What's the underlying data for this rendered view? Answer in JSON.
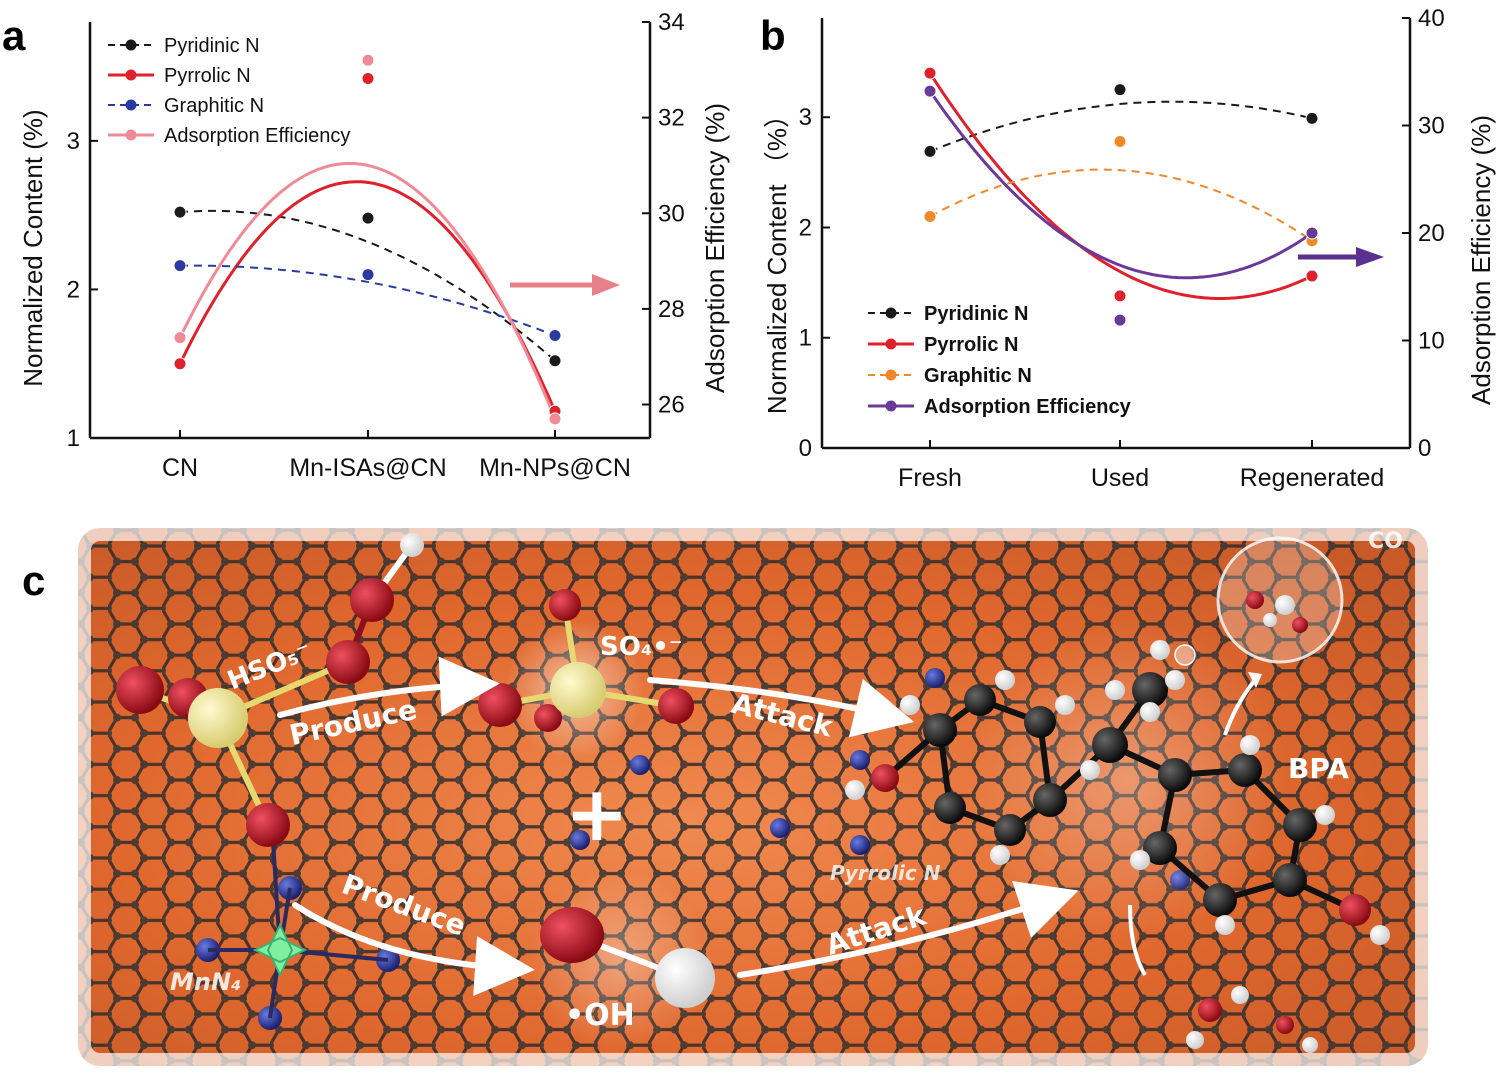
{
  "figure": {
    "panel_a_letter": "a",
    "panel_b_letter": "b",
    "panel_c_letter": "c"
  },
  "chart_data": [
    {
      "panel": "a",
      "type": "line",
      "categories": [
        "CN",
        "Mn-ISAs@CN",
        "Mn-NPs@CN"
      ],
      "ylabel": "Normalized Content (%)",
      "y2label": "Adsorption Efficiency (%)",
      "ylim": [
        1,
        3.8
      ],
      "y2lim": [
        25.3,
        34
      ],
      "yticks": [
        "1",
        "2",
        "3"
      ],
      "y2ticks": [
        "26",
        "28",
        "30",
        "32",
        "34"
      ],
      "legend_position": "top-left",
      "series": [
        {
          "name": "Pyridinic N",
          "axis": "left",
          "style": "dashed",
          "color": "#1a1a1a",
          "values": [
            2.52,
            2.48,
            1.52
          ],
          "fit": [
            2.52,
            2.32,
            1.52
          ]
        },
        {
          "name": "Pyrrolic N",
          "axis": "left",
          "style": "solid",
          "color": "#e0202a",
          "values": [
            1.5,
            3.42,
            1.18
          ],
          "fit": [
            1.5,
            2.72,
            1.18
          ]
        },
        {
          "name": "Graphitic N",
          "axis": "left",
          "style": "dashed",
          "color": "#2a3aa0",
          "values": [
            2.16,
            2.1,
            1.69
          ],
          "fit": [
            2.16,
            2.05,
            1.69
          ]
        },
        {
          "name": "Adsorption Efficiency",
          "axis": "right",
          "style": "solid",
          "color": "#f08a96",
          "values": [
            27.4,
            33.2,
            25.7
          ],
          "fit": [
            27.4,
            31.0,
            25.7
          ]
        }
      ],
      "annotation": "arrow pointing to right axis"
    },
    {
      "panel": "b",
      "type": "line",
      "categories": [
        "Fresh",
        "Used",
        "Regenerated"
      ],
      "ylabel": "Normalized Content （%）",
      "y2label": "Adsorption Efficiency (%)",
      "ylim": [
        0,
        3.9
      ],
      "y2lim": [
        0,
        40
      ],
      "yticks": [
        "0",
        "1",
        "2",
        "3"
      ],
      "y2ticks": [
        "0",
        "10",
        "20",
        "30",
        "40"
      ],
      "legend_position": "bottom-left",
      "series": [
        {
          "name": "Pyridinic N",
          "axis": "left",
          "style": "dashed",
          "color": "#1a1a1a",
          "values": [
            2.69,
            3.25,
            2.99
          ],
          "fit": [
            2.69,
            3.12,
            2.99
          ]
        },
        {
          "name": "Pyrrolic N",
          "axis": "left",
          "style": "solid",
          "color": "#e0202a",
          "values": [
            3.4,
            1.38,
            1.56
          ],
          "fit": [
            3.4,
            1.6,
            1.56
          ]
        },
        {
          "name": "Graphitic N",
          "axis": "left",
          "style": "dashed",
          "color": "#f0892a",
          "values": [
            2.1,
            2.78,
            1.88
          ],
          "fit": [
            2.1,
            2.52,
            1.88
          ]
        },
        {
          "name": "Adsorption Efficiency",
          "axis": "right",
          "style": "solid",
          "color": "#6a3a9a",
          "values": [
            33.2,
            11.9,
            20.0
          ],
          "fit": [
            33.2,
            17.0,
            20.0
          ]
        }
      ],
      "annotation": "arrow pointing to right axis"
    }
  ],
  "scheme": {
    "labels": {
      "hso5": "HSO₅⁻",
      "so4": "SO₄•⁻",
      "produce_top": "Produce",
      "attack_top": "Attack",
      "produce_bottom": "Produce",
      "attack_bottom": "Attack",
      "oh": "•OH",
      "mnn4": "MnN₄",
      "pyrrolic": "Pyrrolic N",
      "bpa": "BPA",
      "plus": "+",
      "co": "CO"
    },
    "colors": {
      "background": "#e06a30",
      "carbon": "#3a3a3a",
      "nitrogen": "#2a3a9a",
      "oxygen": "#b01020",
      "sulfur": "#e8e090",
      "manganese": "#80f0a0",
      "hydrogen": "#ffffff"
    }
  }
}
